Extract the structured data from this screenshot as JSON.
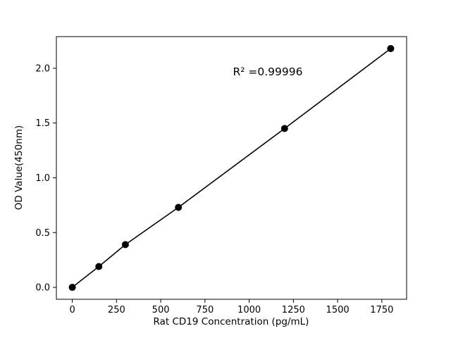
{
  "chart_data": {
    "type": "scatter",
    "title": "",
    "xlabel": "Rat CD19 Concentration (pg/mL)",
    "ylabel": "OD Value(450nm)",
    "annotation": "R² =0.99996",
    "x": [
      0,
      150,
      300,
      600,
      1200,
      1800
    ],
    "y": [
      0.0,
      0.19,
      0.39,
      0.73,
      1.45,
      2.18
    ],
    "xlim": [
      -90,
      1890
    ],
    "ylim": [
      -0.109,
      2.289
    ],
    "x_ticks": [
      0,
      250,
      500,
      750,
      1000,
      1250,
      1500,
      1750
    ],
    "x_tick_labels": [
      "0",
      "250",
      "500",
      "750",
      "1000",
      "1250",
      "1500",
      "1750"
    ],
    "y_ticks": [
      0.0,
      0.5,
      1.0,
      1.5,
      2.0
    ],
    "y_tick_labels": [
      "0.0",
      "0.5",
      "1.0",
      "1.5",
      "2.0"
    ],
    "grid": false,
    "line": true,
    "legend": null,
    "line_color": "#000000",
    "marker_color": "#000000",
    "background_color": "#ffffff"
  }
}
